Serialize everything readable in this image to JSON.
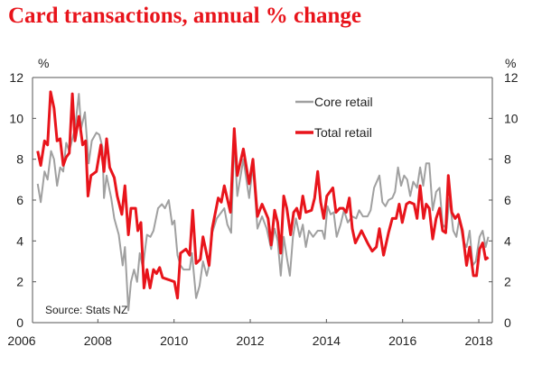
{
  "chart_data": {
    "type": "line",
    "title": "Card transactions, annual % change",
    "ylabel_left": "%",
    "ylabel_right": "%",
    "xlabel": "",
    "xlim": [
      2005.7,
      2018.5
    ],
    "ylim": [
      0,
      12
    ],
    "x_ticks": [
      "2006",
      "2008",
      "2010",
      "2012",
      "2014",
      "2016",
      "2018"
    ],
    "y_ticks": [
      "0",
      "2",
      "4",
      "6",
      "8",
      "10",
      "12"
    ],
    "grid": false,
    "legend_position": "top-right",
    "source": "Source: Stats NZ",
    "series": [
      {
        "name": "Core retail",
        "color": "#a0a0a0",
        "points": [
          [
            2006.42,
            6.8
          ],
          [
            2006.5,
            5.9
          ],
          [
            2006.6,
            7.4
          ],
          [
            2006.68,
            7.0
          ],
          [
            2006.77,
            8.4
          ],
          [
            2006.85,
            8.0
          ],
          [
            2006.93,
            6.7
          ],
          [
            2007.01,
            7.6
          ],
          [
            2007.09,
            7.4
          ],
          [
            2007.17,
            8.8
          ],
          [
            2007.25,
            8.4
          ],
          [
            2007.4,
            9.5
          ],
          [
            2007.5,
            11.2
          ],
          [
            2007.56,
            9.5
          ],
          [
            2007.66,
            10.3
          ],
          [
            2007.76,
            7.8
          ],
          [
            2007.84,
            8.9
          ],
          [
            2007.96,
            9.3
          ],
          [
            2008.04,
            9.2
          ],
          [
            2008.12,
            8.6
          ],
          [
            2008.16,
            6.1
          ],
          [
            2008.23,
            7.2
          ],
          [
            2008.35,
            6.1
          ],
          [
            2008.43,
            5.1
          ],
          [
            2008.55,
            4.3
          ],
          [
            2008.65,
            2.8
          ],
          [
            2008.71,
            3.7
          ],
          [
            2008.8,
            0.6
          ],
          [
            2008.87,
            2.0
          ],
          [
            2008.95,
            2.6
          ],
          [
            2009.03,
            2.0
          ],
          [
            2009.1,
            3.4
          ],
          [
            2009.18,
            2.7
          ],
          [
            2009.29,
            4.3
          ],
          [
            2009.38,
            4.2
          ],
          [
            2009.46,
            4.5
          ],
          [
            2009.58,
            5.6
          ],
          [
            2009.68,
            5.8
          ],
          [
            2009.76,
            5.6
          ],
          [
            2009.86,
            6.0
          ],
          [
            2009.95,
            4.8
          ],
          [
            2010.01,
            5.0
          ],
          [
            2010.09,
            3.3
          ],
          [
            2010.17,
            2.8
          ],
          [
            2010.25,
            2.6
          ],
          [
            2010.41,
            2.6
          ],
          [
            2010.47,
            3.4
          ],
          [
            2010.58,
            1.2
          ],
          [
            2010.67,
            1.8
          ],
          [
            2010.76,
            3.0
          ],
          [
            2010.86,
            2.3
          ],
          [
            2010.92,
            2.8
          ],
          [
            2011.0,
            4.4
          ],
          [
            2011.12,
            5.1
          ],
          [
            2011.24,
            5.4
          ],
          [
            2011.32,
            5.6
          ],
          [
            2011.4,
            4.8
          ],
          [
            2011.5,
            4.4
          ],
          [
            2011.58,
            8.9
          ],
          [
            2011.66,
            6.2
          ],
          [
            2011.82,
            8.0
          ],
          [
            2011.97,
            6.1
          ],
          [
            2012.07,
            7.7
          ],
          [
            2012.19,
            4.6
          ],
          [
            2012.31,
            5.2
          ],
          [
            2012.43,
            4.6
          ],
          [
            2012.55,
            3.6
          ],
          [
            2012.64,
            4.6
          ],
          [
            2012.72,
            4.0
          ],
          [
            2012.8,
            2.3
          ],
          [
            2012.88,
            4.2
          ],
          [
            2012.96,
            3.2
          ],
          [
            2013.04,
            2.3
          ],
          [
            2013.12,
            4.2
          ],
          [
            2013.2,
            5.1
          ],
          [
            2013.3,
            4.2
          ],
          [
            2013.38,
            4.8
          ],
          [
            2013.46,
            3.7
          ],
          [
            2013.54,
            4.5
          ],
          [
            2013.65,
            4.2
          ],
          [
            2013.77,
            4.5
          ],
          [
            2013.89,
            4.5
          ],
          [
            2013.95,
            4.1
          ],
          [
            2014.03,
            5.7
          ],
          [
            2014.11,
            5.3
          ],
          [
            2014.19,
            5.4
          ],
          [
            2014.27,
            4.2
          ],
          [
            2014.37,
            4.8
          ],
          [
            2014.46,
            5.5
          ],
          [
            2014.56,
            4.9
          ],
          [
            2014.68,
            5.2
          ],
          [
            2014.78,
            5.1
          ],
          [
            2014.86,
            5.5
          ],
          [
            2014.96,
            5.2
          ],
          [
            2015.08,
            5.2
          ],
          [
            2015.16,
            5.5
          ],
          [
            2015.25,
            6.6
          ],
          [
            2015.39,
            7.2
          ],
          [
            2015.47,
            5.9
          ],
          [
            2015.55,
            5.7
          ],
          [
            2015.63,
            6.0
          ],
          [
            2015.73,
            6.1
          ],
          [
            2015.8,
            6.4
          ],
          [
            2015.88,
            7.6
          ],
          [
            2015.96,
            6.7
          ],
          [
            2016.04,
            7.2
          ],
          [
            2016.12,
            7.0
          ],
          [
            2016.2,
            6.2
          ],
          [
            2016.28,
            6.9
          ],
          [
            2016.38,
            6.6
          ],
          [
            2016.46,
            7.6
          ],
          [
            2016.54,
            6.7
          ],
          [
            2016.62,
            7.8
          ],
          [
            2016.7,
            7.8
          ],
          [
            2016.79,
            5.5
          ],
          [
            2016.88,
            6.4
          ],
          [
            2016.97,
            6.6
          ],
          [
            2017.05,
            4.8
          ],
          [
            2017.15,
            4.6
          ],
          [
            2017.23,
            6.1
          ],
          [
            2017.33,
            4.5
          ],
          [
            2017.41,
            4.2
          ],
          [
            2017.49,
            5.1
          ],
          [
            2017.59,
            4.0
          ],
          [
            2017.68,
            3.7
          ],
          [
            2017.76,
            4.5
          ],
          [
            2017.84,
            2.8
          ],
          [
            2017.92,
            3.0
          ],
          [
            2018.02,
            4.2
          ],
          [
            2018.1,
            4.5
          ],
          [
            2018.18,
            3.7
          ],
          [
            2018.25,
            4.2
          ]
        ]
      },
      {
        "name": "Total retail",
        "color": "#e8141b",
        "points": [
          [
            2006.42,
            8.4
          ],
          [
            2006.5,
            7.7
          ],
          [
            2006.6,
            8.9
          ],
          [
            2006.68,
            8.7
          ],
          [
            2006.76,
            11.3
          ],
          [
            2006.85,
            10.5
          ],
          [
            2006.93,
            8.9
          ],
          [
            2007.01,
            9.0
          ],
          [
            2007.09,
            7.7
          ],
          [
            2007.17,
            8.1
          ],
          [
            2007.25,
            8.3
          ],
          [
            2007.33,
            11.2
          ],
          [
            2007.4,
            8.9
          ],
          [
            2007.5,
            10.1
          ],
          [
            2007.6,
            8.7
          ],
          [
            2007.68,
            8.9
          ],
          [
            2007.74,
            6.2
          ],
          [
            2007.82,
            7.2
          ],
          [
            2007.96,
            7.4
          ],
          [
            2008.08,
            8.7
          ],
          [
            2008.16,
            7.4
          ],
          [
            2008.23,
            9.0
          ],
          [
            2008.31,
            7.6
          ],
          [
            2008.43,
            7.1
          ],
          [
            2008.51,
            6.2
          ],
          [
            2008.63,
            5.3
          ],
          [
            2008.71,
            6.7
          ],
          [
            2008.8,
            4.3
          ],
          [
            2008.87,
            5.6
          ],
          [
            2008.99,
            5.6
          ],
          [
            2009.05,
            4.5
          ],
          [
            2009.13,
            4.9
          ],
          [
            2009.21,
            1.7
          ],
          [
            2009.29,
            2.6
          ],
          [
            2009.37,
            1.7
          ],
          [
            2009.46,
            2.6
          ],
          [
            2009.54,
            2.4
          ],
          [
            2009.62,
            2.7
          ],
          [
            2009.7,
            2.2
          ],
          [
            2009.86,
            2.1
          ],
          [
            2010.01,
            2.0
          ],
          [
            2010.09,
            1.2
          ],
          [
            2010.17,
            3.4
          ],
          [
            2010.31,
            3.6
          ],
          [
            2010.41,
            3.3
          ],
          [
            2010.49,
            5.5
          ],
          [
            2010.58,
            2.9
          ],
          [
            2010.69,
            3.1
          ],
          [
            2010.76,
            4.2
          ],
          [
            2010.92,
            2.8
          ],
          [
            2011.0,
            4.6
          ],
          [
            2011.16,
            6.1
          ],
          [
            2011.24,
            5.9
          ],
          [
            2011.32,
            6.7
          ],
          [
            2011.48,
            5.4
          ],
          [
            2011.58,
            9.5
          ],
          [
            2011.66,
            7.2
          ],
          [
            2011.82,
            8.5
          ],
          [
            2011.97,
            6.8
          ],
          [
            2012.07,
            8.0
          ],
          [
            2012.19,
            5.2
          ],
          [
            2012.31,
            5.8
          ],
          [
            2012.47,
            5.1
          ],
          [
            2012.55,
            3.8
          ],
          [
            2012.64,
            5.5
          ],
          [
            2012.72,
            4.9
          ],
          [
            2012.8,
            3.4
          ],
          [
            2012.88,
            6.2
          ],
          [
            2012.96,
            5.6
          ],
          [
            2013.06,
            4.3
          ],
          [
            2013.14,
            5.4
          ],
          [
            2013.22,
            5.6
          ],
          [
            2013.3,
            5.1
          ],
          [
            2013.38,
            6.2
          ],
          [
            2013.46,
            5.4
          ],
          [
            2013.61,
            5.5
          ],
          [
            2013.69,
            6.1
          ],
          [
            2013.77,
            7.4
          ],
          [
            2013.85,
            5.9
          ],
          [
            2013.93,
            5.1
          ],
          [
            2014.01,
            6.2
          ],
          [
            2014.17,
            6.6
          ],
          [
            2014.25,
            5.4
          ],
          [
            2014.35,
            5.6
          ],
          [
            2014.44,
            5.6
          ],
          [
            2014.52,
            5.4
          ],
          [
            2014.6,
            6.1
          ],
          [
            2014.68,
            4.6
          ],
          [
            2014.76,
            3.9
          ],
          [
            2014.92,
            4.5
          ],
          [
            2015.08,
            3.9
          ],
          [
            2015.2,
            3.5
          ],
          [
            2015.31,
            3.7
          ],
          [
            2015.39,
            4.6
          ],
          [
            2015.5,
            3.3
          ],
          [
            2015.63,
            4.4
          ],
          [
            2015.73,
            5.1
          ],
          [
            2015.83,
            5.1
          ],
          [
            2015.91,
            5.8
          ],
          [
            2015.99,
            4.9
          ],
          [
            2016.1,
            5.8
          ],
          [
            2016.18,
            5.9
          ],
          [
            2016.3,
            5.8
          ],
          [
            2016.38,
            5.1
          ],
          [
            2016.46,
            6.7
          ],
          [
            2016.55,
            5.1
          ],
          [
            2016.62,
            5.8
          ],
          [
            2016.7,
            5.6
          ],
          [
            2016.79,
            4.1
          ],
          [
            2016.88,
            5.1
          ],
          [
            2016.97,
            5.6
          ],
          [
            2017.05,
            4.5
          ],
          [
            2017.13,
            4.4
          ],
          [
            2017.2,
            7.2
          ],
          [
            2017.29,
            5.4
          ],
          [
            2017.38,
            5.1
          ],
          [
            2017.46,
            5.3
          ],
          [
            2017.57,
            4.5
          ],
          [
            2017.68,
            2.8
          ],
          [
            2017.76,
            3.7
          ],
          [
            2017.86,
            2.3
          ],
          [
            2017.94,
            2.3
          ],
          [
            2018.02,
            3.6
          ],
          [
            2018.1,
            3.9
          ],
          [
            2018.18,
            3.1
          ],
          [
            2018.25,
            3.2
          ]
        ]
      }
    ]
  }
}
